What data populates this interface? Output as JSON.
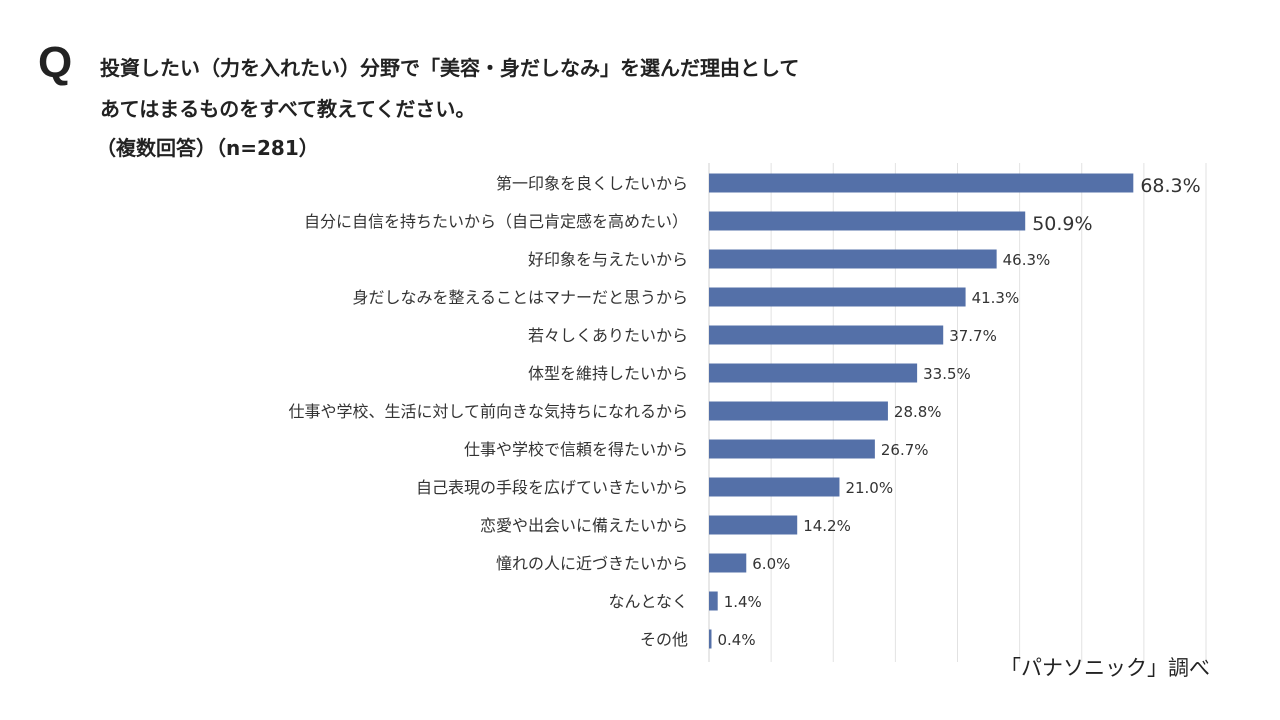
{
  "question": {
    "mark": "Q",
    "line1": "投資したい（力を入れたい）分野で「美容・身だしなみ」を選んだ理由として",
    "line2": "あてはまるものをすべて教えてください。",
    "line3": "（複数回答）（n=281）"
  },
  "source": "「パナソニック」調べ",
  "chart_data": {
    "type": "bar",
    "orientation": "horizontal",
    "categories": [
      "第一印象を良くしたいから",
      "自分に自信を持ちたいから（自己肯定感を高めたい）",
      "好印象を与えたいから",
      "身だしなみを整えることはマナーだと思うから",
      "若々しくありたいから",
      "体型を維持したいから",
      "仕事や学校、生活に対して前向きな気持ちになれるから",
      "仕事や学校で信頼を得たいから",
      "自己表現の手段を広げていきたいから",
      "恋愛や出会いに備えたいから",
      "憧れの人に近づきたいから",
      "なんとなく",
      "その他"
    ],
    "values": [
      68.3,
      50.9,
      46.3,
      41.3,
      37.7,
      33.5,
      28.8,
      26.7,
      21.0,
      14.2,
      6.0,
      1.4,
      0.4
    ],
    "labels": [
      "68.3%",
      "50.9%",
      "46.3%",
      "41.3%",
      "37.7%",
      "33.5%",
      "28.8%",
      "26.7%",
      "21.0%",
      "14.2%",
      "6.0%",
      "1.4%",
      "0.4%"
    ],
    "xlim": [
      0,
      80
    ],
    "grid": true,
    "bar_color": "#5470a8"
  }
}
